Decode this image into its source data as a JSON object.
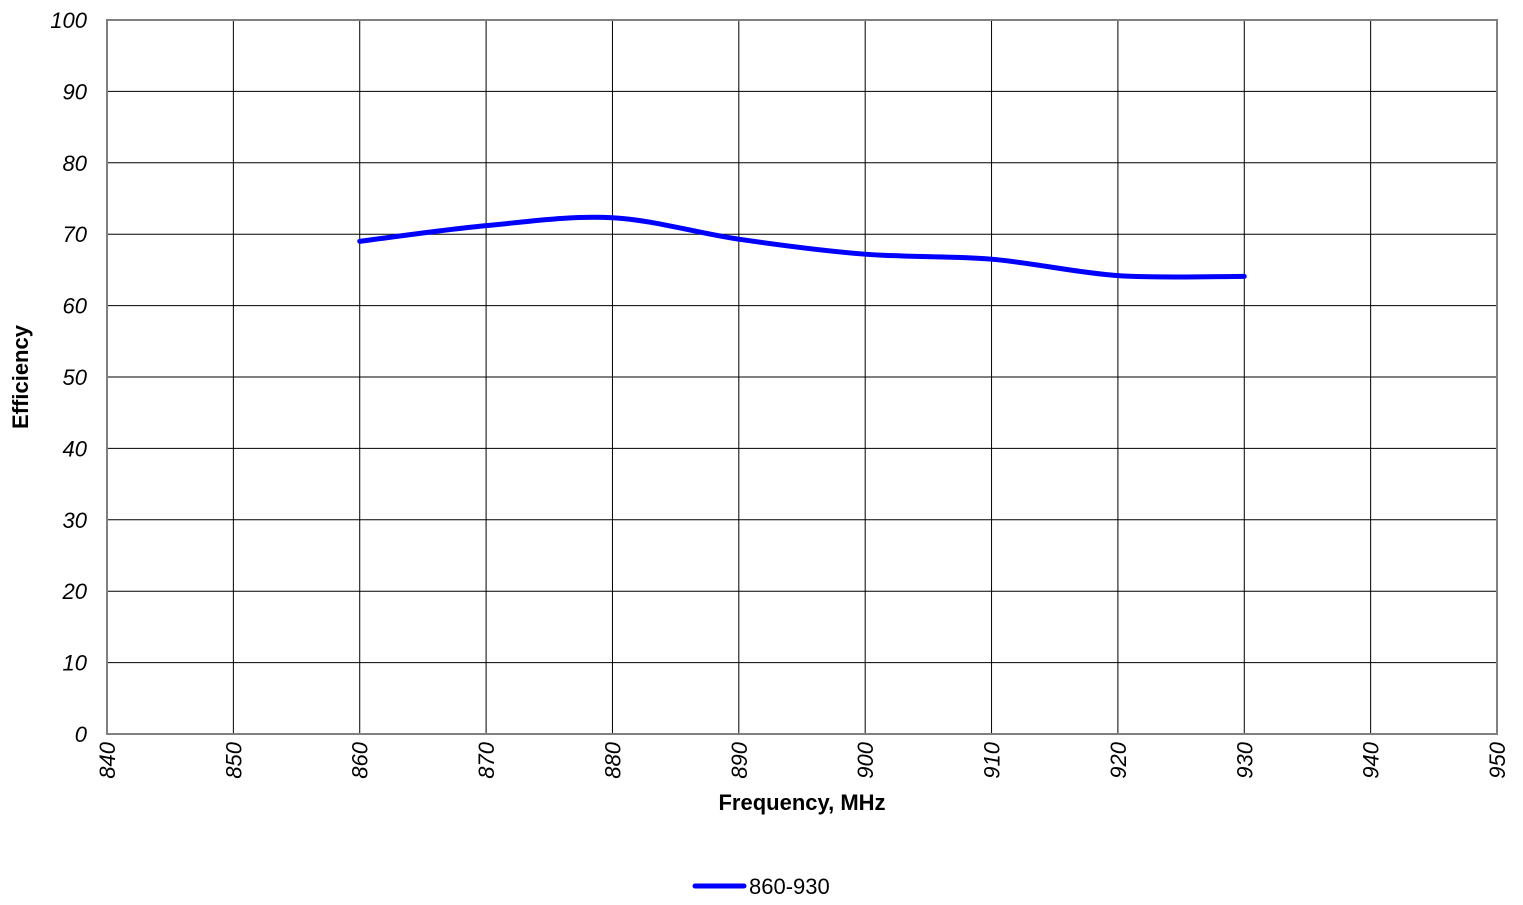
{
  "chart_data": {
    "type": "line",
    "xlabel": "Frequency, MHz",
    "ylabel": "Efficiency",
    "xlim": [
      840,
      950
    ],
    "ylim": [
      0,
      100
    ],
    "xticks": [
      840,
      850,
      860,
      870,
      880,
      890,
      900,
      910,
      920,
      930,
      940,
      950
    ],
    "yticks": [
      0,
      10,
      20,
      30,
      40,
      50,
      60,
      70,
      80,
      90,
      100
    ],
    "grid": true,
    "legend_position": "bottom-center",
    "series": [
      {
        "name": "860-930",
        "color": "#0000ff",
        "x": [
          860,
          870,
          880,
          890,
          900,
          910,
          920,
          930
        ],
        "y": [
          69,
          71.2,
          72.3,
          69.3,
          67.2,
          66.5,
          64.2,
          64.1
        ]
      }
    ]
  }
}
